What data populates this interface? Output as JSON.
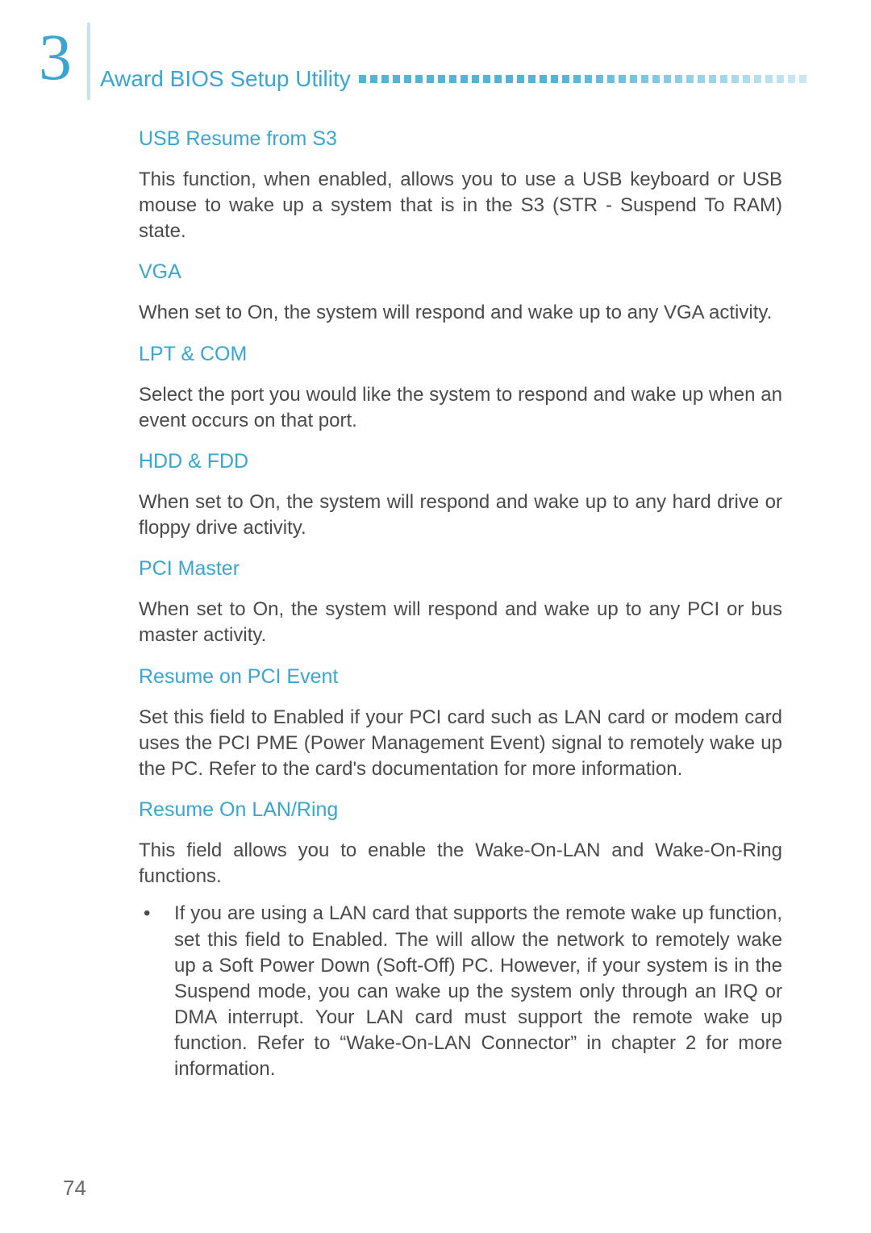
{
  "chapter_number": "3",
  "header_title": "Award BIOS Setup Utility",
  "page_number": "74",
  "colors": {
    "accent": "#38a6d0",
    "rule": "#c8e0ec",
    "body_text": "#4a4a4a",
    "page_num": "#6a6a6a",
    "background": "#ffffff"
  },
  "typography": {
    "chapter_num_size_pt": 62,
    "header_title_size_pt": 21,
    "section_head_size_pt": 19,
    "body_size_pt": 18,
    "body_line_height": 1.34,
    "body_weight": 300,
    "body_align": "justify"
  },
  "sections": [
    {
      "heading": "USB Resume from S3",
      "body": "This function, when enabled, allows you to use a USB keyboard or USB mouse to wake up a system that is in the S3 (STR - Suspend To RAM) state."
    },
    {
      "heading": "VGA",
      "body": "When set to On, the system will respond and wake up to any VGA activity."
    },
    {
      "heading": "LPT & COM",
      "body": "Select the port you would like the system to respond and wake up when an event occurs on that port."
    },
    {
      "heading": "HDD & FDD",
      "body": "When set to On, the system will respond and wake up to any hard drive or floppy drive activity."
    },
    {
      "heading": "PCI Master",
      "body": "When set to On, the system will respond and wake up to any PCI or bus master activity."
    },
    {
      "heading": "Resume on PCI Event",
      "body": "Set this field to Enabled if your PCI card such as LAN card or modem card uses the PCI PME (Power Management Event) signal to remotely wake up the PC. Refer to the card's documentation for more information."
    },
    {
      "heading": "Resume On LAN/Ring",
      "body": "This field allows you to enable the Wake-On-LAN and Wake-On-Ring functions.",
      "bullets": [
        "If you are using a LAN card that supports the remote wake up function, set this field to Enabled. The will allow the network to remotely wake up a Soft Power Down (Soft-Off) PC. However, if your system is in the Suspend mode, you can wake up the system only through an IRQ or DMA interrupt. Your LAN card must support the remote wake up function. Refer to “Wake-On-LAN Connector” in chapter 2 for more information."
      ]
    }
  ]
}
